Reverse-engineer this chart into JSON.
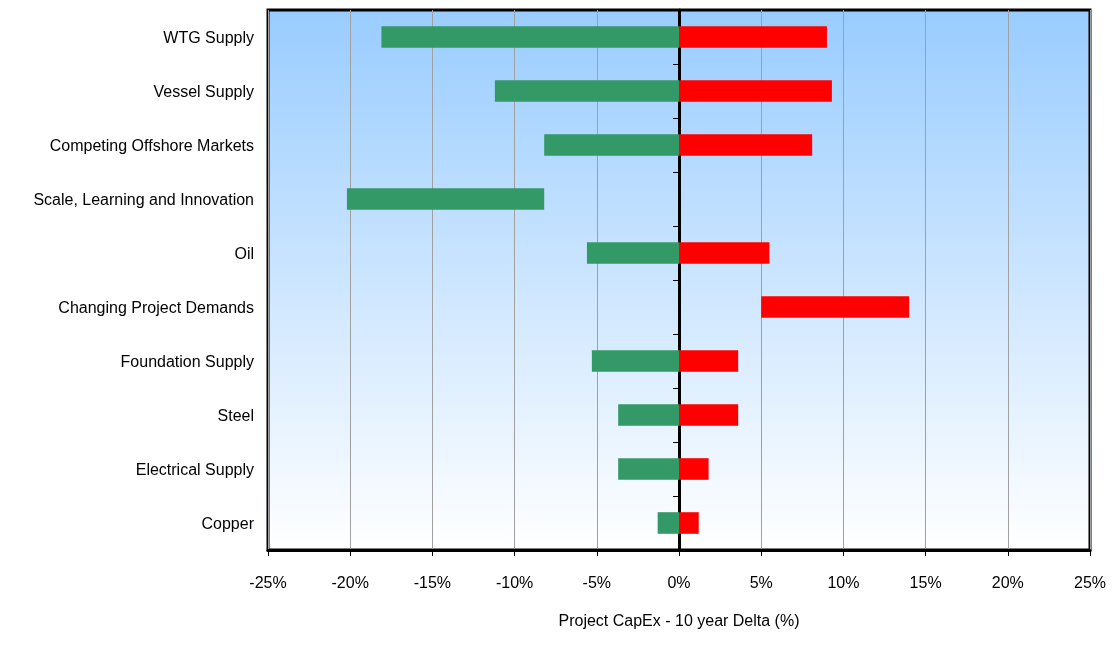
{
  "chart_data": {
    "type": "bar",
    "orientation": "horizontal",
    "xlabel": "Project CapEx - 10 year Delta (%)",
    "categories": [
      "WTG Supply",
      "Vessel Supply",
      "Competing Offshore Markets",
      "Scale, Learning and Innovation",
      "Oil",
      "Changing Project Demands",
      "Foundation Supply",
      "Steel",
      "Electrical Supply",
      "Copper"
    ],
    "series": [
      {
        "color": "#339966",
        "base": [
          0,
          0,
          0,
          -8.2,
          0,
          null,
          0,
          0,
          0,
          0
        ],
        "values": [
          -18.1,
          -11.2,
          -8.2,
          -12.0,
          -5.6,
          null,
          -5.3,
          -3.7,
          -3.7,
          -1.3
        ]
      },
      {
        "color": "#ff0000",
        "base": [
          0,
          0,
          0,
          null,
          0,
          5.0,
          0,
          0,
          0,
          0
        ],
        "values": [
          9.0,
          9.3,
          8.1,
          null,
          5.5,
          9.0,
          3.6,
          3.6,
          1.8,
          1.2
        ]
      }
    ],
    "xlim": [
      -25,
      25
    ],
    "xticks": [
      {
        "value": -25,
        "label": "-25%"
      },
      {
        "value": -20,
        "label": "-20%"
      },
      {
        "value": -15,
        "label": "-15%"
      },
      {
        "value": -10,
        "label": "-10%"
      },
      {
        "value": -5,
        "label": "-5%"
      },
      {
        "value": 0,
        "label": "0%"
      },
      {
        "value": 5,
        "label": "5%"
      },
      {
        "value": 10,
        "label": "10%"
      },
      {
        "value": 15,
        "label": "15%"
      },
      {
        "value": 20,
        "label": "20%"
      },
      {
        "value": 25,
        "label": "25%"
      }
    ],
    "grid": "x",
    "legend": false
  }
}
